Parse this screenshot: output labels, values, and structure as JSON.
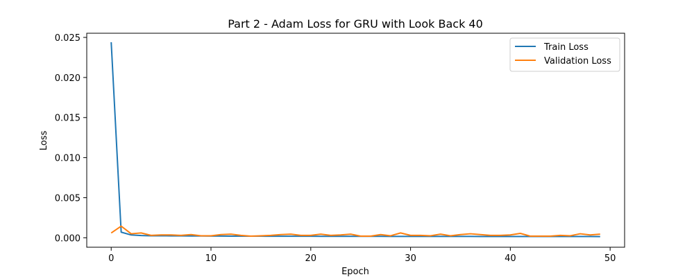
{
  "chart_data": {
    "type": "line",
    "title": "Part 2 - Adam Loss for GRU with Look Back 40",
    "xlabel": "Epoch",
    "ylabel": "Loss",
    "xlim": [
      -2.45,
      51.45
    ],
    "ylim": [
      -0.00118,
      0.02552
    ],
    "xticks": [
      0,
      10,
      20,
      30,
      40,
      50
    ],
    "xtick_labels": [
      "0",
      "10",
      "20",
      "30",
      "40",
      "50"
    ],
    "yticks": [
      0.0,
      0.005,
      0.01,
      0.015,
      0.02,
      0.025
    ],
    "ytick_labels": [
      "0.000",
      "0.005",
      "0.010",
      "0.015",
      "0.020",
      "0.025"
    ],
    "grid": false,
    "legend_position": "top-right",
    "x": [
      0,
      1,
      2,
      3,
      4,
      5,
      6,
      7,
      8,
      9,
      10,
      11,
      12,
      13,
      14,
      15,
      16,
      17,
      18,
      19,
      20,
      21,
      22,
      23,
      24,
      25,
      26,
      27,
      28,
      29,
      30,
      31,
      32,
      33,
      34,
      35,
      36,
      37,
      38,
      39,
      40,
      41,
      42,
      43,
      44,
      45,
      46,
      47,
      48,
      49
    ],
    "series": [
      {
        "name": "Train Loss",
        "color": "#1f77b4",
        "values": [
          0.0244,
          0.0007,
          0.00035,
          0.00028,
          0.00025,
          0.00026,
          0.00024,
          0.00023,
          0.00022,
          0.00022,
          0.00021,
          0.00021,
          0.0002,
          0.0002,
          0.0002,
          0.0002,
          0.00019,
          0.00019,
          0.00019,
          0.00019,
          0.00019,
          0.00018,
          0.00018,
          0.00018,
          0.00018,
          0.00018,
          0.00018,
          0.00018,
          0.00017,
          0.00017,
          0.00017,
          0.00017,
          0.00017,
          0.00017,
          0.00017,
          0.00017,
          0.00017,
          0.00016,
          0.00016,
          0.00016,
          0.00016,
          0.00016,
          0.00016,
          0.00016,
          0.00016,
          0.00016,
          0.00016,
          0.00016,
          0.00016,
          0.00015
        ]
      },
      {
        "name": "Validation Loss",
        "color": "#ff7f0e",
        "values": [
          0.0006,
          0.00145,
          0.0005,
          0.0006,
          0.0003,
          0.00035,
          0.00035,
          0.0003,
          0.0004,
          0.00025,
          0.00025,
          0.0004,
          0.00045,
          0.0003,
          0.0002,
          0.00025,
          0.0003,
          0.0004,
          0.00045,
          0.0003,
          0.0003,
          0.00045,
          0.0003,
          0.00035,
          0.00045,
          0.0002,
          0.0002,
          0.0004,
          0.00025,
          0.0006,
          0.0003,
          0.0003,
          0.00025,
          0.00045,
          0.00025,
          0.0004,
          0.0005,
          0.0004,
          0.0003,
          0.0003,
          0.00035,
          0.00055,
          0.0002,
          0.0002,
          0.0002,
          0.0003,
          0.00025,
          0.0005,
          0.00035,
          0.00045
        ]
      }
    ]
  }
}
